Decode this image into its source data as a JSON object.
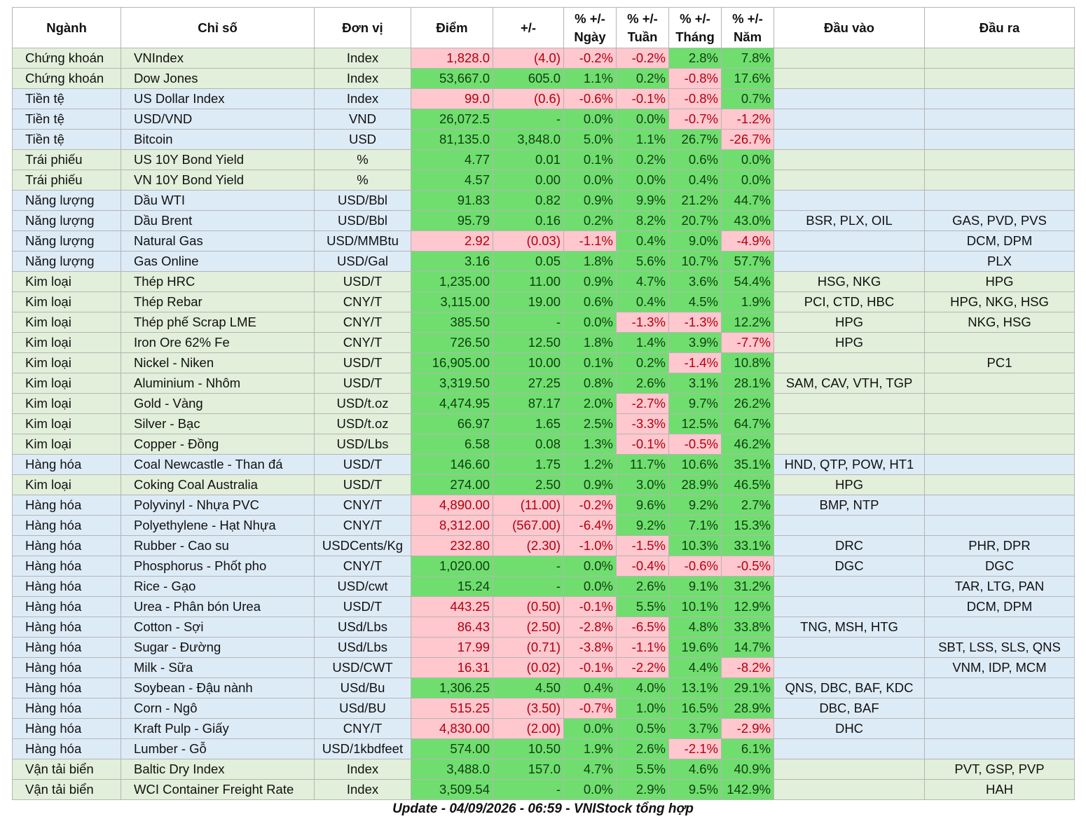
{
  "table": {
    "headers": [
      "Ngành",
      "Chỉ số",
      "Đơn vị",
      "Điểm",
      "+/-",
      "% +/-\nNgày",
      "% +/-\nTuần",
      "% +/-\nTháng",
      "% +/-\nNăm",
      "Đầu vào",
      "Đầu ra"
    ],
    "sector_colors": {
      "Chứng khoán": "#e2efda",
      "Tiền tệ": "#ddebf7",
      "Trái phiếu": "#e2efda",
      "Năng lượng": "#ddebf7",
      "Kim loại": "#e2efda",
      "Hàng hóa": "#ddebf7",
      "Vận tải biển": "#e2efda"
    },
    "positive_color": "#6fde6f",
    "negative_color": "#ffc7ce",
    "rows": [
      [
        "Chứng khoán",
        "VNIndex",
        "Index",
        "1,828.0",
        "(4.0)",
        "-0.2%",
        "-0.2%",
        "2.8%",
        "7.8%",
        null,
        null
      ],
      [
        "Chứng khoán",
        "Dow Jones",
        "Index",
        "53,667.0",
        "605.0",
        "1.1%",
        "0.2%",
        "-0.8%",
        "17.6%",
        null,
        null
      ],
      [
        "Tiền tệ",
        "US Dollar Index",
        "Index",
        "99.0",
        "(0.6)",
        "-0.6%",
        "-0.1%",
        "-0.8%",
        "0.7%",
        null,
        null
      ],
      [
        "Tiền tệ",
        "USD/VND",
        "VND",
        "26,072.5",
        "-",
        "0.0%",
        "0.0%",
        "-0.7%",
        "-1.2%",
        null,
        null
      ],
      [
        "Tiền tệ",
        "Bitcoin",
        "USD",
        "81,135.0",
        "3,848.0",
        "5.0%",
        "1.1%",
        "26.7%",
        "-26.7%",
        null,
        null
      ],
      [
        "Trái phiếu",
        "US 10Y Bond Yield",
        "%",
        "4.77",
        "0.01",
        "0.1%",
        "0.2%",
        "0.6%",
        "0.0%",
        null,
        null
      ],
      [
        "Trái phiếu",
        "VN 10Y Bond Yield",
        "%",
        "4.57",
        "0.00",
        "0.0%",
        "0.0%",
        "0.4%",
        "0.0%",
        null,
        null
      ],
      [
        "Năng lượng",
        "Dầu WTI",
        "USD/Bbl",
        "91.83",
        "0.82",
        "0.9%",
        "9.9%",
        "21.2%",
        "44.7%",
        null,
        null
      ],
      [
        "Năng lượng",
        "Dầu Brent",
        "USD/Bbl",
        "95.79",
        "0.16",
        "0.2%",
        "8.2%",
        "20.7%",
        "43.0%",
        "BSR, PLX, OIL",
        "GAS, PVD, PVS"
      ],
      [
        "Năng lượng",
        "Natural Gas",
        "USD/MMBtu",
        "2.92",
        "(0.03)",
        "-1.1%",
        "0.4%",
        "9.0%",
        "-4.9%",
        null,
        "DCM, DPM"
      ],
      [
        "Năng lượng",
        "Gas Online",
        "USD/Gal",
        "3.16",
        "0.05",
        "1.8%",
        "5.6%",
        "10.7%",
        "57.7%",
        null,
        "PLX"
      ],
      [
        "Kim loại",
        "Thép HRC",
        "USD/T",
        "1,235.00",
        "11.00",
        "0.9%",
        "4.7%",
        "3.6%",
        "54.4%",
        "HSG, NKG",
        "HPG"
      ],
      [
        "Kim loại",
        "Thép Rebar",
        "CNY/T",
        "3,115.00",
        "19.00",
        "0.6%",
        "0.4%",
        "4.5%",
        "1.9%",
        "PCI, CTD, HBC",
        "HPG, NKG, HSG"
      ],
      [
        "Kim loại",
        "Thép phế Scrap LME",
        "CNY/T",
        "385.50",
        "-",
        "0.0%",
        "-1.3%",
        "-1.3%",
        "12.2%",
        "HPG",
        "NKG, HSG"
      ],
      [
        "Kim loại",
        "Iron Ore 62% Fe",
        "CNY/T",
        "726.50",
        "12.50",
        "1.8%",
        "1.4%",
        "3.9%",
        "-7.7%",
        "HPG",
        null
      ],
      [
        "Kim loại",
        "Nickel - Niken",
        "USD/T",
        "16,905.00",
        "10.00",
        "0.1%",
        "0.2%",
        "-1.4%",
        "10.8%",
        null,
        "PC1"
      ],
      [
        "Kim loại",
        "Aluminium - Nhôm",
        "USD/T",
        "3,319.50",
        "27.25",
        "0.8%",
        "2.6%",
        "3.1%",
        "28.1%",
        "SAM, CAV, VTH, TGP",
        null
      ],
      [
        "Kim loại",
        "Gold - Vàng",
        "USD/t.oz",
        "4,474.95",
        "87.17",
        "2.0%",
        "-2.7%",
        "9.7%",
        "26.2%",
        null,
        null
      ],
      [
        "Kim loại",
        "Silver - Bạc",
        "USD/t.oz",
        "66.97",
        "1.65",
        "2.5%",
        "-3.3%",
        "12.5%",
        "64.7%",
        null,
        null
      ],
      [
        "Kim loại",
        "Copper - Đồng",
        "USD/Lbs",
        "6.58",
        "0.08",
        "1.3%",
        "-0.1%",
        "-0.5%",
        "46.2%",
        null,
        null
      ],
      [
        "Hàng hóa",
        "Coal Newcastle - Than đá",
        "USD/T",
        "146.60",
        "1.75",
        "1.2%",
        "11.7%",
        "10.6%",
        "35.1%",
        "HND, QTP, POW, HT1",
        null
      ],
      [
        "Kim loại",
        "Coking Coal Australia",
        "USD/T",
        "274.00",
        "2.50",
        "0.9%",
        "3.0%",
        "28.9%",
        "46.5%",
        "HPG",
        null
      ],
      [
        "Hàng hóa",
        "Polyvinyl - Nhựa PVC",
        "CNY/T",
        "4,890.00",
        "(11.00)",
        "-0.2%",
        "9.6%",
        "9.2%",
        "2.7%",
        "BMP, NTP",
        null
      ],
      [
        "Hàng hóa",
        "Polyethylene - Hạt Nhựa",
        "CNY/T",
        "8,312.00",
        "(567.00)",
        "-6.4%",
        "9.2%",
        "7.1%",
        "15.3%",
        null,
        null
      ],
      [
        "Hàng hóa",
        "Rubber - Cao su",
        "USDCents/Kg",
        "232.80",
        "(2.30)",
        "-1.0%",
        "-1.5%",
        "10.3%",
        "33.1%",
        "DRC",
        "PHR, DPR"
      ],
      [
        "Hàng hóa",
        "Phosphorus - Phốt pho",
        "CNY/T",
        "1,020.00",
        "-",
        "0.0%",
        "-0.4%",
        "-0.6%",
        "-0.5%",
        "DGC",
        "DGC"
      ],
      [
        "Hàng hóa",
        "Rice - Gạo",
        "USD/cwt",
        "15.24",
        "-",
        "0.0%",
        "2.6%",
        "9.1%",
        "31.2%",
        null,
        "TAR, LTG, PAN"
      ],
      [
        "Hàng hóa",
        "Urea - Phân bón Urea",
        "USD/T",
        "443.25",
        "(0.50)",
        "-0.1%",
        "5.5%",
        "10.1%",
        "12.9%",
        null,
        "DCM, DPM"
      ],
      [
        "Hàng hóa",
        "Cotton - Sợi",
        "USd/Lbs",
        "86.43",
        "(2.50)",
        "-2.8%",
        "-6.5%",
        "4.8%",
        "33.8%",
        "TNG, MSH, HTG",
        null
      ],
      [
        "Hàng hóa",
        "Sugar - Đường",
        "USd/Lbs",
        "17.99",
        "(0.71)",
        "-3.8%",
        "-1.1%",
        "19.6%",
        "14.7%",
        null,
        "SBT, LSS, SLS, QNS"
      ],
      [
        "Hàng hóa",
        "Milk - Sữa",
        "USD/CWT",
        "16.31",
        "(0.02)",
        "-0.1%",
        "-2.2%",
        "4.4%",
        "-8.2%",
        null,
        "VNM, IDP, MCM"
      ],
      [
        "Hàng hóa",
        "Soybean - Đậu nành",
        "USd/Bu",
        "1,306.25",
        "4.50",
        "0.4%",
        "4.0%",
        "13.1%",
        "29.1%",
        "QNS, DBC, BAF, KDC",
        null
      ],
      [
        "Hàng hóa",
        "Corn - Ngô",
        "USd/BU",
        "515.25",
        "(3.50)",
        "-0.7%",
        "1.0%",
        "16.5%",
        "28.9%",
        "DBC, BAF",
        null
      ],
      [
        "Hàng hóa",
        "Kraft Pulp - Giấy",
        "CNY/T",
        "4,830.00",
        "(2.00)",
        "0.0%",
        "0.5%",
        "3.7%",
        "-2.9%",
        "DHC",
        null
      ],
      [
        "Hàng hóa",
        "Lumber - Gỗ",
        "USD/1kbdfeet",
        "574.00",
        "10.50",
        "1.9%",
        "2.6%",
        "-2.1%",
        "6.1%",
        null,
        null
      ],
      [
        "Vận tải biển",
        "Baltic Dry Index",
        "Index",
        "3,488.0",
        "157.0",
        "4.7%",
        "5.5%",
        "4.6%",
        "40.9%",
        null,
        "PVT, GSP, PVP"
      ],
      [
        "Vận tải biển",
        "WCI Container Freight Rate",
        "Index",
        "3,509.54",
        "-",
        "0.0%",
        "2.9%",
        "9.5%",
        "142.9%",
        null,
        "HAH"
      ]
    ]
  },
  "footer": "Update - 04/09/2026 - 06:59 - VNIStock tổng hợp"
}
